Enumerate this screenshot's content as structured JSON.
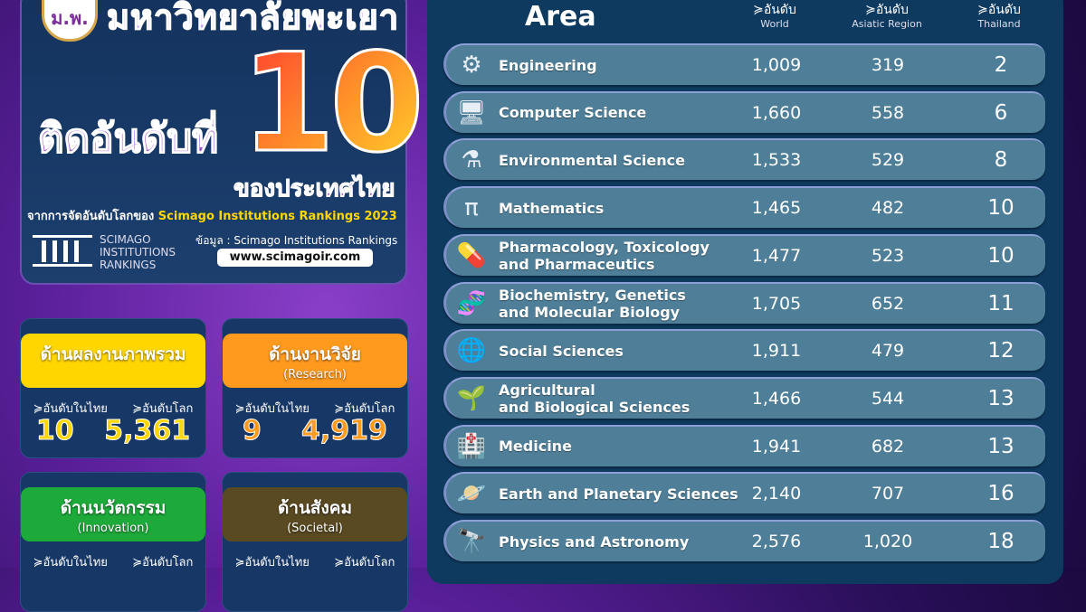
{
  "header": {
    "university": "มหาวิทยาลัยพะเยา",
    "logo_text": "ม.พ.",
    "rank_label": "ติดอันดับที่",
    "rank": "10",
    "country": "ของประเทศไทย",
    "from_prefix": "จากการจัดอันดับโลกของ",
    "from_source": "Scimago Institutions Rankings 2023",
    "sir_logo_lines": [
      "SCIMAGO",
      "INSTITUTIONS",
      "RANKINGS"
    ],
    "data_source": "ข้อมูล : Scimago Institutions Rankings",
    "url": "www.scimagoir.com"
  },
  "cards": [
    {
      "title": "ด้านผลงานภาพรวม",
      "subtitle": "",
      "color": "#ffd600",
      "value_color": "#ffd600",
      "thai_label": "อันดับในไทย",
      "world_label": "อันดับโลก",
      "thai": "10",
      "world": "5,361"
    },
    {
      "title": "ด้านงานวิจัย",
      "subtitle": "(Research)",
      "color": "#ff9a1f",
      "value_color": "#ff9a1f",
      "thai_label": "อันดับในไทย",
      "world_label": "อันดับโลก",
      "thai": "9",
      "world": "4,919"
    },
    {
      "title": "ด้านนวัตกรรม",
      "subtitle": "(Innovation)",
      "color": "#1eaa3a",
      "value_color": "#1eaa3a",
      "thai_label": "อันดับในไทย",
      "world_label": "อันดับโลก"
    },
    {
      "title": "ด้านสังคม",
      "subtitle": "(Societal)",
      "color": "#5a4a22",
      "value_color": "#5a4a22",
      "thai_label": "อันดับในไทย",
      "world_label": "อันดับโลก"
    }
  ],
  "table": {
    "area_header": "Area",
    "rank_word": "อันดับ",
    "columns": [
      "World",
      "Asiatic Region",
      "Thailand"
    ],
    "rows": [
      {
        "icon": "gear-icon",
        "glyph": "⚙",
        "name": "Engineering",
        "world": "1,009",
        "asia": "319",
        "thai": "2"
      },
      {
        "icon": "computer-atom-icon",
        "glyph": "🖥",
        "name": "Computer Science",
        "world": "1,660",
        "asia": "558",
        "thai": "6"
      },
      {
        "icon": "leaf-flask-icon",
        "glyph": "⚗",
        "name": "Environmental Science",
        "world": "1,533",
        "asia": "529",
        "thai": "8"
      },
      {
        "icon": "math-board-icon",
        "glyph": "π",
        "name": "Mathematics",
        "world": "1,465",
        "asia": "482",
        "thai": "10"
      },
      {
        "icon": "pills-icon",
        "glyph": "💊",
        "name": "Pharmacology, Toxicology\nand Pharmaceutics",
        "world": "1,477",
        "asia": "523",
        "thai": "10"
      },
      {
        "icon": "dna-icon",
        "glyph": "🧬",
        "name": "Biochemistry, Genetics\nand Molecular Biology",
        "world": "1,705",
        "asia": "652",
        "thai": "11"
      },
      {
        "icon": "people-globe-icon",
        "glyph": "🌐",
        "name": "Social Sciences",
        "world": "1,911",
        "asia": "479",
        "thai": "12"
      },
      {
        "icon": "plant-icon",
        "glyph": "🌱",
        "name": "Agricultural\nand Biological Sciences",
        "world": "1,466",
        "asia": "544",
        "thai": "13"
      },
      {
        "icon": "hospital-icon",
        "glyph": "🏥",
        "name": "Medicine",
        "world": "1,941",
        "asia": "682",
        "thai": "13"
      },
      {
        "icon": "planet-icon",
        "glyph": "🪐",
        "name": "Earth and Planetary Sciences",
        "world": "2,140",
        "asia": "707",
        "thai": "16"
      },
      {
        "icon": "telescope-icon",
        "glyph": "🔭",
        "name": "Physics and Astronomy",
        "world": "2,576",
        "asia": "1,020",
        "thai": "18"
      }
    ]
  }
}
